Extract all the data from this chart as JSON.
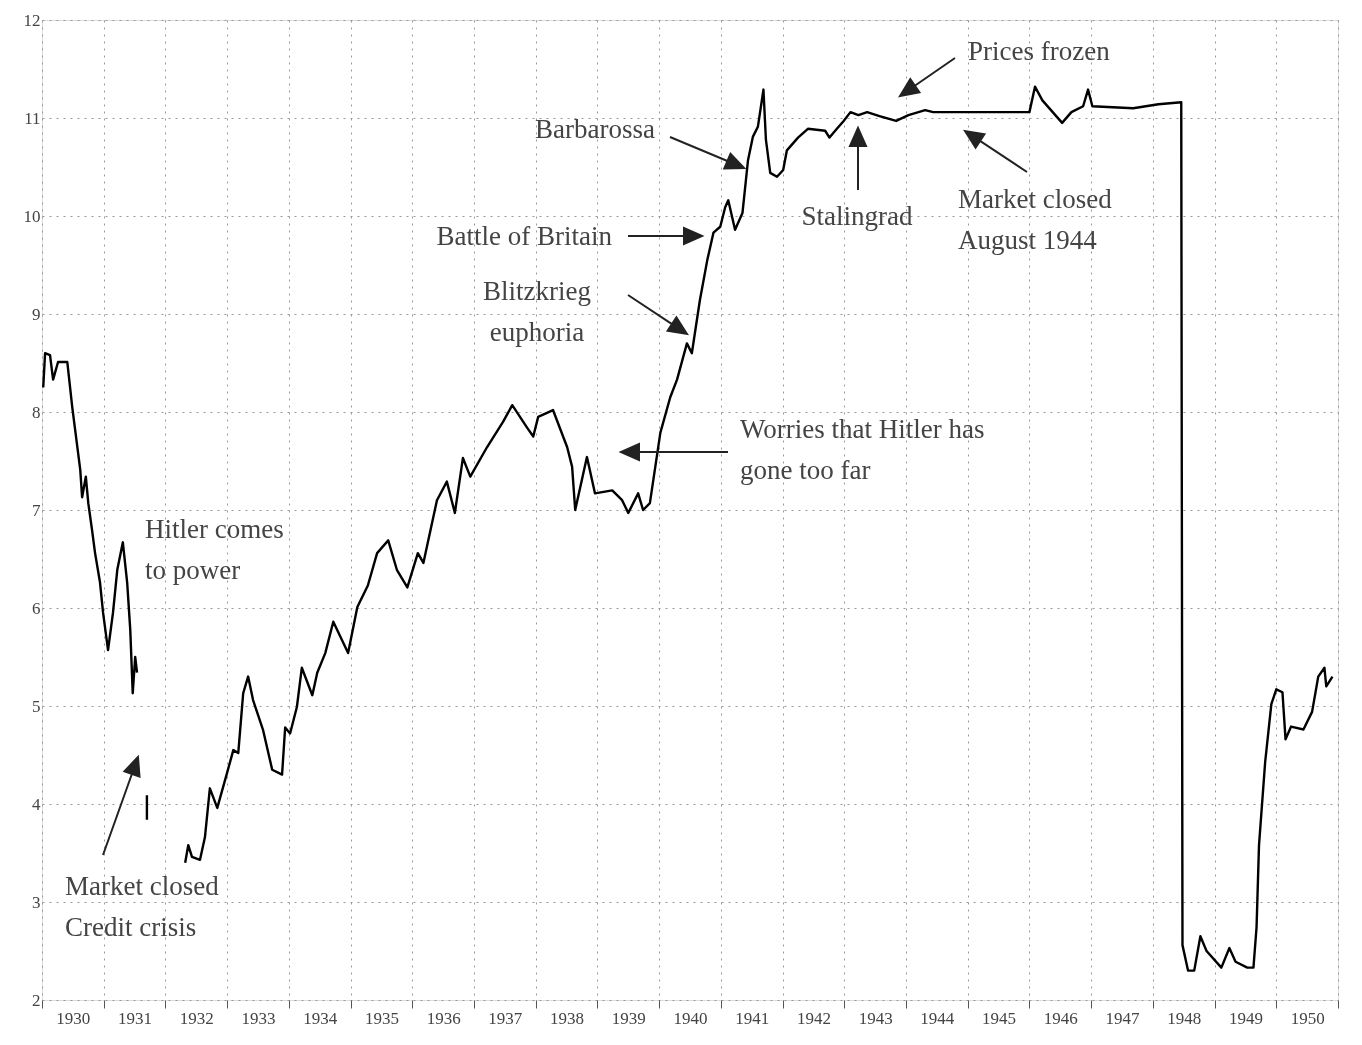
{
  "chart_data": {
    "type": "line",
    "x": [
      1930.02,
      1930.05,
      1930.13,
      1930.18,
      1930.26,
      1930.41,
      1930.49,
      1930.62,
      1930.65,
      1930.71,
      1930.75,
      1930.81,
      1930.86,
      1930.94,
      1930.99,
      1931.07,
      1931.15,
      1931.22,
      1931.31,
      1931.38,
      1931.43,
      1931.47,
      1931.51,
      1931.54,
      1931.6,
      1931.7,
      1931.7,
      1931.8,
      1932.32,
      1932.37,
      1932.43,
      1932.56,
      1932.64,
      1932.72,
      1932.84,
      1933.0,
      1933.1,
      1933.18,
      1933.26,
      1933.34,
      1933.42,
      1933.58,
      1933.73,
      1933.89,
      1933.94,
      1934.02,
      1934.13,
      1934.21,
      1934.38,
      1934.46,
      1934.59,
      1934.72,
      1934.96,
      1935.11,
      1935.28,
      1935.43,
      1935.61,
      1935.75,
      1935.92,
      1936.09,
      1936.18,
      1936.4,
      1936.56,
      1936.69,
      1936.82,
      1936.94,
      1937.21,
      1937.47,
      1937.62,
      1937.86,
      1937.96,
      1938.04,
      1938.28,
      1938.51,
      1938.59,
      1938.64,
      1938.83,
      1938.96,
      1939.24,
      1939.4,
      1939.5,
      1939.66,
      1939.74,
      1939.85,
      1940.02,
      1940.18,
      1940.29,
      1940.45,
      1940.53,
      1940.66,
      1940.78,
      1940.88,
      1940.99,
      1941.07,
      1941.12,
      1941.23,
      1941.35,
      1941.44,
      1941.52,
      1941.6,
      1941.69,
      1941.73,
      1941.8,
      1941.91,
      1942.01,
      1942.07,
      1942.25,
      1942.41,
      1942.69,
      1942.76,
      1942.88,
      1942.99,
      1943.1,
      1943.23,
      1943.37,
      1943.57,
      1943.84,
      1944.04,
      1944.31,
      1944.44,
      1946.0,
      1946.09,
      1946.21,
      1946.53,
      1946.68,
      1946.87,
      1946.95,
      1947.02,
      1947.68,
      1948.09,
      1948.46,
      1948.48,
      1948.57,
      1948.67,
      1948.77,
      1948.87,
      1949.11,
      1949.24,
      1949.34,
      1949.53,
      1949.63,
      1949.68,
      1949.72,
      1949.82,
      1949.92,
      1950.0,
      1950.1,
      1950.15,
      1950.24,
      1950.44,
      1950.58,
      1950.68,
      1950.78,
      1950.81,
      1950.91
    ],
    "series": [
      {
        "color": "#000000",
        "values": [
          8.25,
          8.6,
          8.58,
          8.33,
          8.51,
          8.51,
          8.05,
          7.41,
          7.13,
          7.34,
          7.07,
          6.8,
          6.56,
          6.26,
          5.95,
          5.57,
          5.95,
          6.39,
          6.67,
          6.26,
          5.78,
          5.13,
          5.5,
          5.34,
          null,
          4.09,
          3.84,
          null,
          3.4,
          3.58,
          3.46,
          3.43,
          3.66,
          4.16,
          3.96,
          4.32,
          4.55,
          4.52,
          5.13,
          5.3,
          5.06,
          4.76,
          4.35,
          4.3,
          4.78,
          4.72,
          4.99,
          5.39,
          5.11,
          5.34,
          5.54,
          5.86,
          5.54,
          6.01,
          6.23,
          6.56,
          6.69,
          6.39,
          6.21,
          6.56,
          6.46,
          7.1,
          7.29,
          6.97,
          7.53,
          7.34,
          7.64,
          7.9,
          8.07,
          7.84,
          7.75,
          7.95,
          8.02,
          7.64,
          7.44,
          7.0,
          7.54,
          7.17,
          7.2,
          7.1,
          6.97,
          7.17,
          7.0,
          7.07,
          7.79,
          8.15,
          8.33,
          8.7,
          8.6,
          9.14,
          9.55,
          9.83,
          9.89,
          10.09,
          10.16,
          9.86,
          10.03,
          10.57,
          10.81,
          10.91,
          11.29,
          10.78,
          10.44,
          10.4,
          10.47,
          10.67,
          10.8,
          10.89,
          10.87,
          10.8,
          10.89,
          10.97,
          11.06,
          11.03,
          11.06,
          11.02,
          10.97,
          11.03,
          11.08,
          11.06,
          11.06,
          11.32,
          11.18,
          10.95,
          11.06,
          11.12,
          11.29,
          11.12,
          11.1,
          11.14,
          11.16,
          2.56,
          2.3,
          2.3,
          2.65,
          2.5,
          2.33,
          2.53,
          2.39,
          2.33,
          2.33,
          2.74,
          3.58,
          4.43,
          5.02,
          5.17,
          5.14,
          4.66,
          4.79,
          4.76,
          4.94,
          5.3,
          5.39,
          5.2,
          5.3
        ]
      }
    ],
    "xlim": [
      1930,
      1951
    ],
    "xticks": [
      {
        "value": 1930,
        "label": null
      },
      {
        "value": 1930.5,
        "label": "1930"
      },
      {
        "value": 1931,
        "label": null
      },
      {
        "value": 1931.5,
        "label": "1931"
      },
      {
        "value": 1932,
        "label": null
      },
      {
        "value": 1932.5,
        "label": "1932"
      },
      {
        "value": 1933,
        "label": null
      },
      {
        "value": 1933.5,
        "label": "1933"
      },
      {
        "value": 1934,
        "label": null
      },
      {
        "value": 1934.5,
        "label": "1934"
      },
      {
        "value": 1935,
        "label": null
      },
      {
        "value": 1935.5,
        "label": "1935"
      },
      {
        "value": 1936,
        "label": null
      },
      {
        "value": 1936.5,
        "label": "1936"
      },
      {
        "value": 1937,
        "label": null
      },
      {
        "value": 1937.5,
        "label": "1937"
      },
      {
        "value": 1938,
        "label": null
      },
      {
        "value": 1938.5,
        "label": "1938"
      },
      {
        "value": 1939,
        "label": null
      },
      {
        "value": 1939.5,
        "label": "1939"
      },
      {
        "value": 1940,
        "label": null
      },
      {
        "value": 1940.5,
        "label": "1940"
      },
      {
        "value": 1941,
        "label": null
      },
      {
        "value": 1941.5,
        "label": "1941"
      },
      {
        "value": 1942,
        "label": null
      },
      {
        "value": 1942.5,
        "label": "1942"
      },
      {
        "value": 1943,
        "label": null
      },
      {
        "value": 1943.5,
        "label": "1943"
      },
      {
        "value": 1944,
        "label": null
      },
      {
        "value": 1944.5,
        "label": "1944"
      },
      {
        "value": 1945,
        "label": null
      },
      {
        "value": 1945.5,
        "label": "1945"
      },
      {
        "value": 1946,
        "label": null
      },
      {
        "value": 1946.5,
        "label": "1946"
      },
      {
        "value": 1947,
        "label": null
      },
      {
        "value": 1947.5,
        "label": "1947"
      },
      {
        "value": 1948,
        "label": null
      },
      {
        "value": 1948.5,
        "label": "1948"
      },
      {
        "value": 1949,
        "label": null
      },
      {
        "value": 1949.5,
        "label": "1949"
      },
      {
        "value": 1950,
        "label": null
      },
      {
        "value": 1950.5,
        "label": "1950"
      },
      {
        "value": 1951,
        "label": null
      }
    ],
    "ylim": [
      2,
      12
    ],
    "yticks": [
      2,
      3,
      4,
      5,
      6,
      7,
      8,
      9,
      10,
      11,
      12
    ],
    "grid": true,
    "annotations": [
      "Market closed\nCredit crisis",
      "Hitler comes\nto power",
      "Battle of Britain",
      "Blitzkrieg\neuphoria",
      "Barbarossa",
      "Worries that Hitler has\ngone too far",
      "Stalingrad",
      "Prices frozen",
      "Market closed\nAugust 1944"
    ]
  }
}
